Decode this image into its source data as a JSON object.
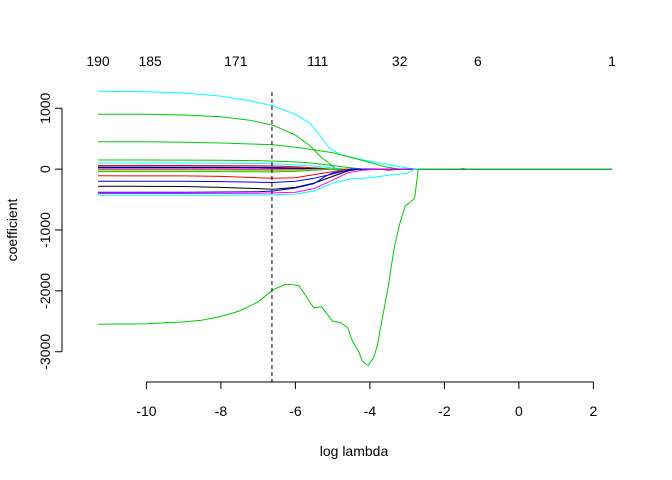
{
  "chart_data": {
    "type": "line",
    "xlabel": "log lambda",
    "ylabel": "coefficient",
    "xlim": [
      -11.3,
      2.5
    ],
    "ylim": [
      -3300,
      1300
    ],
    "x_ticks": [
      -10,
      -8,
      -6,
      -4,
      -2,
      0,
      2
    ],
    "x_tick_labels": [
      "-10",
      "-8",
      "-6",
      "-4",
      "-2",
      "0",
      "2"
    ],
    "y_ticks": [
      1000,
      0,
      -1000,
      -2000,
      -3000
    ],
    "y_tick_labels": [
      "1000",
      "0",
      "-1000",
      "-2000",
      "-3000"
    ],
    "top_axis_positions": [
      -11.3,
      -9.9,
      -7.6,
      -5.4,
      -3.2,
      -1.1,
      2.5
    ],
    "top_axis_labels": [
      "190",
      "185",
      "171",
      "111",
      "32",
      "6",
      "1"
    ],
    "vline": {
      "x": -6.63,
      "style": "dashed"
    },
    "grid": false,
    "legend": "none",
    "series": [
      {
        "color": "#00FFFF",
        "points": [
          [
            -11.3,
            1280
          ],
          [
            -10,
            1270
          ],
          [
            -9,
            1250
          ],
          [
            -8,
            1200
          ],
          [
            -7.2,
            1120
          ],
          [
            -6.6,
            1040
          ],
          [
            -6,
            900
          ],
          [
            -5.6,
            750
          ],
          [
            -5.3,
            520
          ],
          [
            -5.1,
            350
          ],
          [
            -4.8,
            240
          ],
          [
            -4.4,
            180
          ],
          [
            -4,
            130
          ],
          [
            -3.5,
            80
          ],
          [
            -3.2,
            40
          ],
          [
            -2.8,
            0
          ],
          [
            2.5,
            0
          ]
        ]
      },
      {
        "color": "#00CD00",
        "points": [
          [
            -11.3,
            900
          ],
          [
            -10,
            900
          ],
          [
            -9,
            890
          ],
          [
            -8,
            860
          ],
          [
            -7.2,
            800
          ],
          [
            -6.6,
            720
          ],
          [
            -6,
            560
          ],
          [
            -5.6,
            380
          ],
          [
            -5.3,
            190
          ],
          [
            -5.1,
            100
          ],
          [
            -4.9,
            0
          ],
          [
            2.5,
            0
          ]
        ]
      },
      {
        "color": "#00CD00",
        "points": [
          [
            -11.3,
            450
          ],
          [
            -10,
            450
          ],
          [
            -9,
            440
          ],
          [
            -8,
            430
          ],
          [
            -7,
            410
          ],
          [
            -6.6,
            400
          ],
          [
            -6,
            360
          ],
          [
            -5.5,
            320
          ],
          [
            -5,
            270
          ],
          [
            -4.5,
            190
          ],
          [
            -4,
            110
          ],
          [
            -3.6,
            40
          ],
          [
            -3.2,
            0
          ],
          [
            2.5,
            0
          ]
        ]
      },
      {
        "color": "#00CD00",
        "points": [
          [
            -11.3,
            150
          ],
          [
            -10,
            150
          ],
          [
            -9,
            148
          ],
          [
            -8,
            145
          ],
          [
            -7,
            140
          ],
          [
            -6.6,
            132
          ],
          [
            -6,
            118
          ],
          [
            -5.5,
            95
          ],
          [
            -5,
            60
          ],
          [
            -4.5,
            20
          ],
          [
            -4.2,
            0
          ],
          [
            2.5,
            0
          ]
        ]
      },
      {
        "color": "#00FFFF",
        "points": [
          [
            -11.3,
            100
          ],
          [
            -9,
            100
          ],
          [
            -8,
            98
          ],
          [
            -7,
            92
          ],
          [
            -6.6,
            86
          ],
          [
            -6,
            70
          ],
          [
            -5.5,
            50
          ],
          [
            -5,
            20
          ],
          [
            -4.7,
            0
          ],
          [
            2.5,
            0
          ]
        ]
      },
      {
        "color": "#FF0000",
        "points": [
          [
            -11.3,
            60
          ],
          [
            -9,
            60
          ],
          [
            -8,
            58
          ],
          [
            -7,
            55
          ],
          [
            -6.6,
            52
          ],
          [
            -6,
            38
          ],
          [
            -5.5,
            20
          ],
          [
            -5,
            0
          ],
          [
            -3.7,
            0
          ],
          [
            -3.5,
            -20
          ],
          [
            -3.2,
            0
          ],
          [
            -1.6,
            0
          ],
          [
            -1.5,
            10
          ],
          [
            -1.4,
            0
          ],
          [
            2.5,
            0
          ]
        ]
      },
      {
        "color": "#0000FF",
        "points": [
          [
            -11.3,
            35
          ],
          [
            -8,
            34
          ],
          [
            -7,
            32
          ],
          [
            -6.6,
            28
          ],
          [
            -6,
            18
          ],
          [
            -5.5,
            8
          ],
          [
            -5.2,
            0
          ],
          [
            2.5,
            0
          ]
        ]
      },
      {
        "color": "#000000",
        "points": [
          [
            -11.3,
            20
          ],
          [
            -8,
            20
          ],
          [
            -7,
            18
          ],
          [
            -6.6,
            15
          ],
          [
            -6,
            10
          ],
          [
            -5.5,
            0
          ],
          [
            2.5,
            0
          ]
        ]
      },
      {
        "color": "#FF00FF",
        "points": [
          [
            -11.3,
            -5
          ],
          [
            -8,
            -5
          ],
          [
            -7,
            -8
          ],
          [
            -6.6,
            -10
          ],
          [
            -6,
            -8
          ],
          [
            -5.5,
            -4
          ],
          [
            -5,
            0
          ],
          [
            2.5,
            0
          ]
        ]
      },
      {
        "color": "#CDCD00",
        "points": [
          [
            -11.3,
            -20
          ],
          [
            -8,
            -20
          ],
          [
            -7,
            -22
          ],
          [
            -6.6,
            -24
          ],
          [
            -6,
            -18
          ],
          [
            -5.5,
            -8
          ],
          [
            -5,
            0
          ],
          [
            2.5,
            0
          ]
        ]
      },
      {
        "color": "#00CD00",
        "points": [
          [
            -11.3,
            -40
          ],
          [
            -8,
            -40
          ],
          [
            -7,
            -42
          ],
          [
            -6.6,
            -45
          ],
          [
            -6,
            -36
          ],
          [
            -5.5,
            -20
          ],
          [
            -5,
            0
          ],
          [
            2.5,
            0
          ]
        ]
      },
      {
        "color": "#FF0000",
        "points": [
          [
            -11.3,
            -110
          ],
          [
            -9,
            -112
          ],
          [
            -8,
            -120
          ],
          [
            -7,
            -140
          ],
          [
            -6.6,
            -150
          ],
          [
            -6,
            -140
          ],
          [
            -5.5,
            -90
          ],
          [
            -5,
            -40
          ],
          [
            -4.6,
            0
          ],
          [
            2.5,
            0
          ]
        ]
      },
      {
        "color": "#0000FF",
        "points": [
          [
            -11.3,
            -200
          ],
          [
            -9,
            -200
          ],
          [
            -8,
            -205
          ],
          [
            -7,
            -215
          ],
          [
            -6.6,
            -220
          ],
          [
            -6,
            -200
          ],
          [
            -5.5,
            -150
          ],
          [
            -5,
            -80
          ],
          [
            -4.5,
            0
          ],
          [
            2.5,
            0
          ]
        ]
      },
      {
        "color": "#000000",
        "points": [
          [
            -11.3,
            -280
          ],
          [
            -9,
            -285
          ],
          [
            -8,
            -300
          ],
          [
            -7,
            -320
          ],
          [
            -6.6,
            -330
          ],
          [
            -6,
            -300
          ],
          [
            -5.5,
            -230
          ],
          [
            -5,
            -120
          ],
          [
            -4.6,
            -30
          ],
          [
            -4.3,
            0
          ],
          [
            2.5,
            0
          ]
        ]
      },
      {
        "color": "#0000FF",
        "points": [
          [
            -11.3,
            -380
          ],
          [
            -9,
            -380
          ],
          [
            -8,
            -375
          ],
          [
            -7,
            -370
          ],
          [
            -6.6,
            -360
          ],
          [
            -6,
            -310
          ],
          [
            -5.5,
            -240
          ],
          [
            -5.2,
            -120
          ],
          [
            -5,
            -60
          ],
          [
            -4.6,
            -20
          ],
          [
            -4.2,
            0
          ],
          [
            2.5,
            0
          ]
        ]
      },
      {
        "color": "#FF00FF",
        "points": [
          [
            -11.3,
            -400
          ],
          [
            -9,
            -400
          ],
          [
            -8,
            -398
          ],
          [
            -7,
            -395
          ],
          [
            -6.6,
            -390
          ],
          [
            -6,
            -380
          ],
          [
            -5.5,
            -320
          ],
          [
            -5,
            -180
          ],
          [
            -4.6,
            -60
          ],
          [
            -4.2,
            -20
          ],
          [
            -3.8,
            0
          ],
          [
            2.5,
            0
          ]
        ]
      },
      {
        "color": "#00FFFF",
        "points": [
          [
            -11.3,
            -430
          ],
          [
            -9,
            -430
          ],
          [
            -8,
            -428
          ],
          [
            -7,
            -425
          ],
          [
            -6.6,
            -420
          ],
          [
            -6,
            -410
          ],
          [
            -5.5,
            -360
          ],
          [
            -5,
            -230
          ],
          [
            -4.5,
            -160
          ],
          [
            -4,
            -140
          ],
          [
            -3.5,
            -100
          ],
          [
            -3,
            -70
          ],
          [
            -2.8,
            0
          ],
          [
            2.5,
            0
          ]
        ]
      },
      {
        "color": "#00CD00",
        "points": [
          [
            -11.3,
            -2550
          ],
          [
            -10,
            -2540
          ],
          [
            -9,
            -2510
          ],
          [
            -8.5,
            -2480
          ],
          [
            -8,
            -2420
          ],
          [
            -7.5,
            -2330
          ],
          [
            -7,
            -2180
          ],
          [
            -6.6,
            -1980
          ],
          [
            -6.3,
            -1900
          ],
          [
            -6.1,
            -1890
          ],
          [
            -5.9,
            -1920
          ],
          [
            -5.7,
            -2100
          ],
          [
            -5.6,
            -2200
          ],
          [
            -5.5,
            -2280
          ],
          [
            -5.3,
            -2260
          ],
          [
            -5.1,
            -2420
          ],
          [
            -5,
            -2500
          ],
          [
            -4.8,
            -2520
          ],
          [
            -4.6,
            -2600
          ],
          [
            -4.5,
            -2780
          ],
          [
            -4.4,
            -2900
          ],
          [
            -4.3,
            -3000
          ],
          [
            -4.2,
            -3150
          ],
          [
            -4.05,
            -3230
          ],
          [
            -3.9,
            -3100
          ],
          [
            -3.8,
            -2900
          ],
          [
            -3.65,
            -2400
          ],
          [
            -3.5,
            -1900
          ],
          [
            -3.35,
            -1300
          ],
          [
            -3.2,
            -900
          ],
          [
            -3.05,
            -600
          ],
          [
            -2.95,
            -560
          ],
          [
            -2.8,
            -480
          ],
          [
            -2.7,
            0
          ],
          [
            2.5,
            0
          ]
        ]
      }
    ]
  }
}
